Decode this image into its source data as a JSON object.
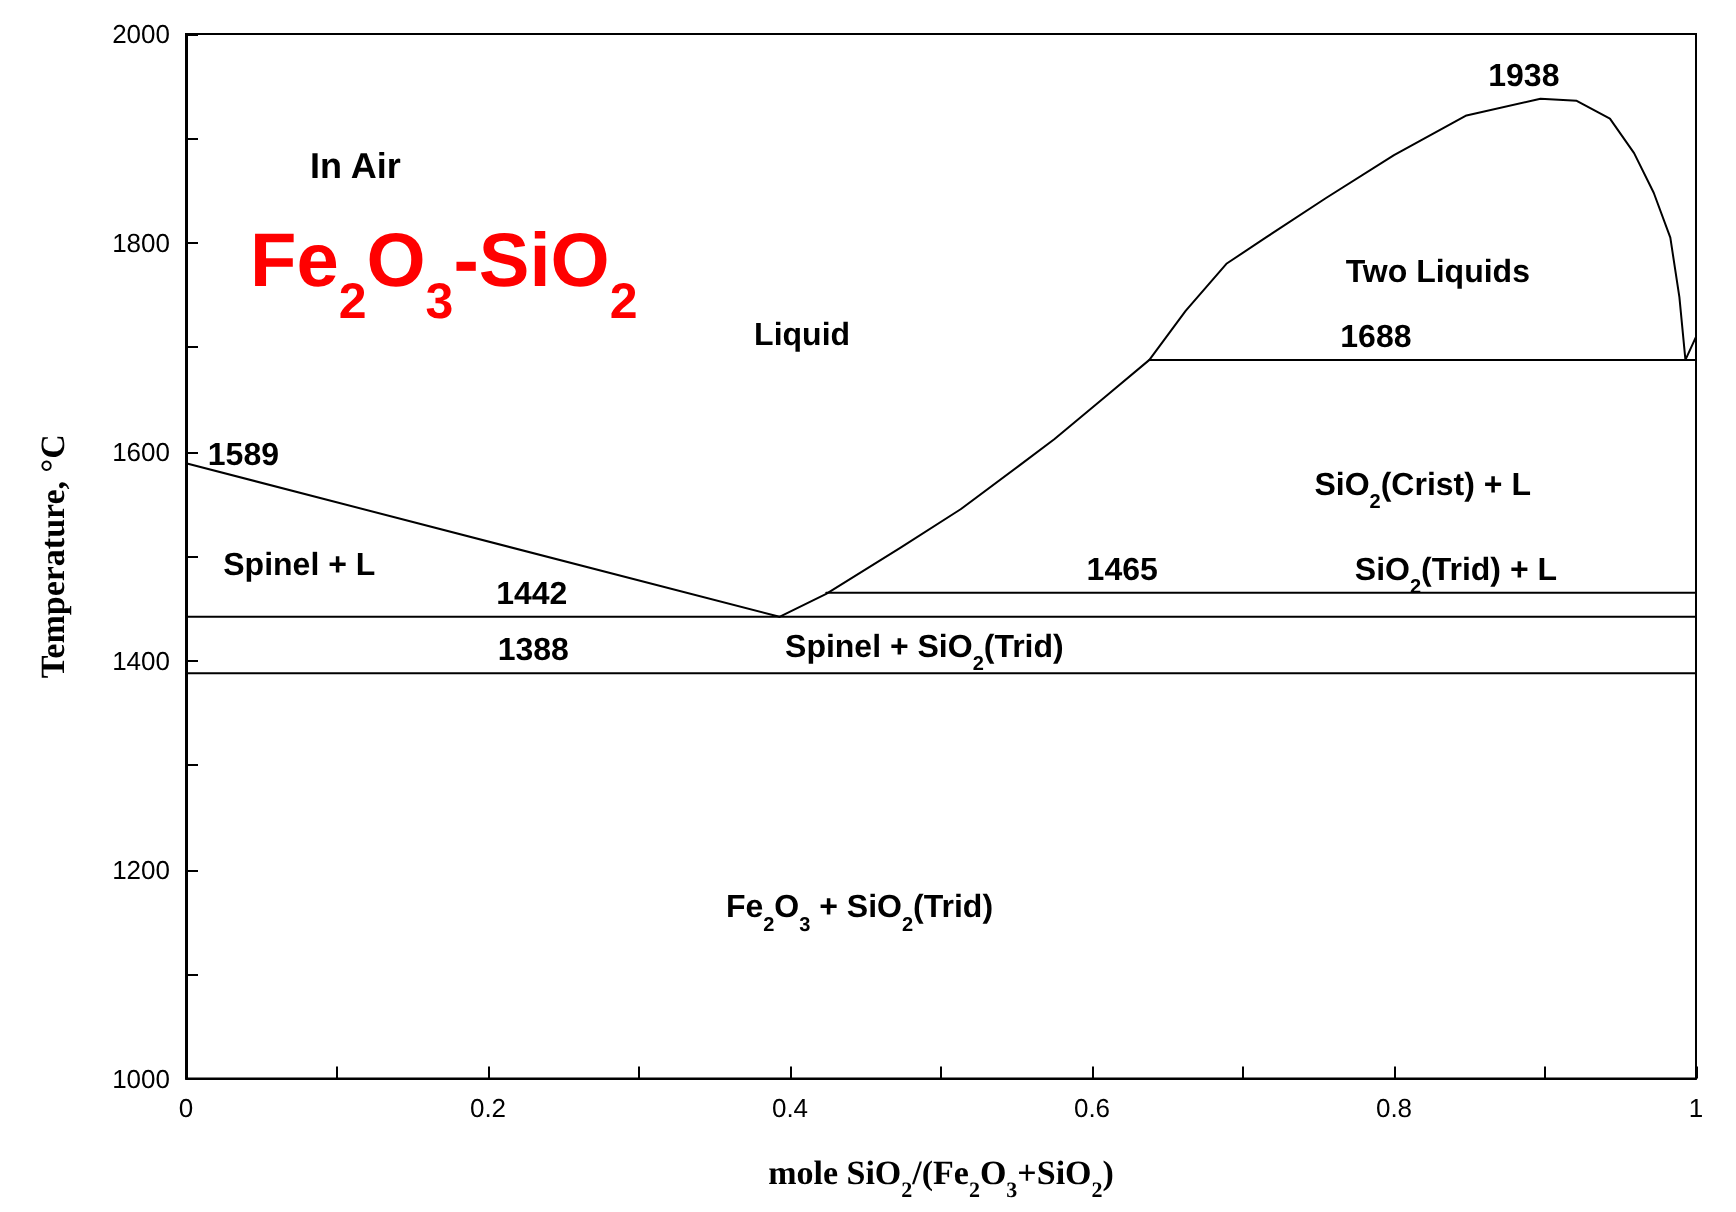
{
  "chart_data": {
    "type": "line",
    "title": "Fe$_{2}$O$_{3}$-SiO$_{2}$",
    "subtitle": "In Air",
    "xlabel": "mole SiO$_{2}$/(Fe$_{2}$O$_{3}$+SiO$_{2}$)",
    "ylabel": "Temperature, °C",
    "xlim": [
      0,
      1
    ],
    "ylim": [
      1000,
      2000
    ],
    "xticks": [
      0,
      {
        "value": 0.1,
        "label": null
      },
      0.2,
      {
        "value": 0.3,
        "label": null
      },
      0.4,
      {
        "value": 0.5,
        "label": null
      },
      0.6,
      {
        "value": 0.7,
        "label": null
      },
      0.8,
      {
        "value": 0.9,
        "label": null
      },
      1
    ],
    "yticks": [
      1000,
      {
        "value": 1100,
        "label": null
      },
      1200,
      {
        "value": 1300,
        "label": null
      },
      1400,
      {
        "value": 1500,
        "label": null
      },
      1600,
      {
        "value": 1700,
        "label": null
      },
      1800,
      {
        "value": 1900,
        "label": null
      },
      2000
    ],
    "marker": "none",
    "line_style": "solid",
    "series": [
      {
        "color": "#000000",
        "x": [
          0,
          0.393
        ],
        "values": [
          1589,
          1442
        ]
      },
      {
        "color": "#000000",
        "x": [
          0.393,
          0.424,
          0.473,
          0.513,
          0.552,
          0.575,
          0.609,
          0.638,
          0.662,
          0.689,
          0.715,
          0.755,
          0.8,
          0.848,
          0.897,
          0.921,
          0.943,
          0.959,
          0.972,
          0.983,
          0.989,
          0.993,
          1
        ],
        "values": [
          1442,
          1464,
          1508,
          1545,
          1587,
          1612,
          1653,
          1688,
          1735,
          1780,
          1805,
          1843,
          1884,
          1922,
          1938,
          1936,
          1919,
          1886,
          1848,
          1805,
          1748,
          1688,
          1710
        ]
      },
      {
        "color": "#000000",
        "x": [
          0.638,
          1
        ],
        "values": [
          1688,
          1688
        ]
      },
      {
        "color": "#000000",
        "x": [
          0.424,
          1
        ],
        "values": [
          1465,
          1465
        ]
      },
      {
        "color": "#000000",
        "x": [
          0,
          1
        ],
        "values": [
          1442,
          1442
        ]
      },
      {
        "color": "#000000",
        "x": [
          0,
          1
        ],
        "values": [
          1388,
          1388
        ]
      }
    ],
    "annotations": [
      "Liquid",
      "Spinel + L",
      "Two Liquids",
      "SiO$_{2}$(Crist) + L",
      "SiO$_{2}$(Trid) + L",
      "Spinel + SiO$_{2}$(Trid)",
      "Fe$_{2}$O$_{3}$ + SiO$_{2}$(Trid)",
      {
        "text": "1589",
        "x": 0.038,
        "y": 1575
      },
      {
        "text": "1442",
        "x": 0.229,
        "y": 1442
      },
      {
        "text": "1388",
        "x": 0.23,
        "y": 1388
      },
      {
        "text": "1465",
        "x": 0.62,
        "y": 1465
      },
      {
        "text": "1688",
        "x": 0.788,
        "y": 1688
      },
      {
        "text": "1938",
        "x": 0.886,
        "y": 1938
      }
    ]
  }
}
